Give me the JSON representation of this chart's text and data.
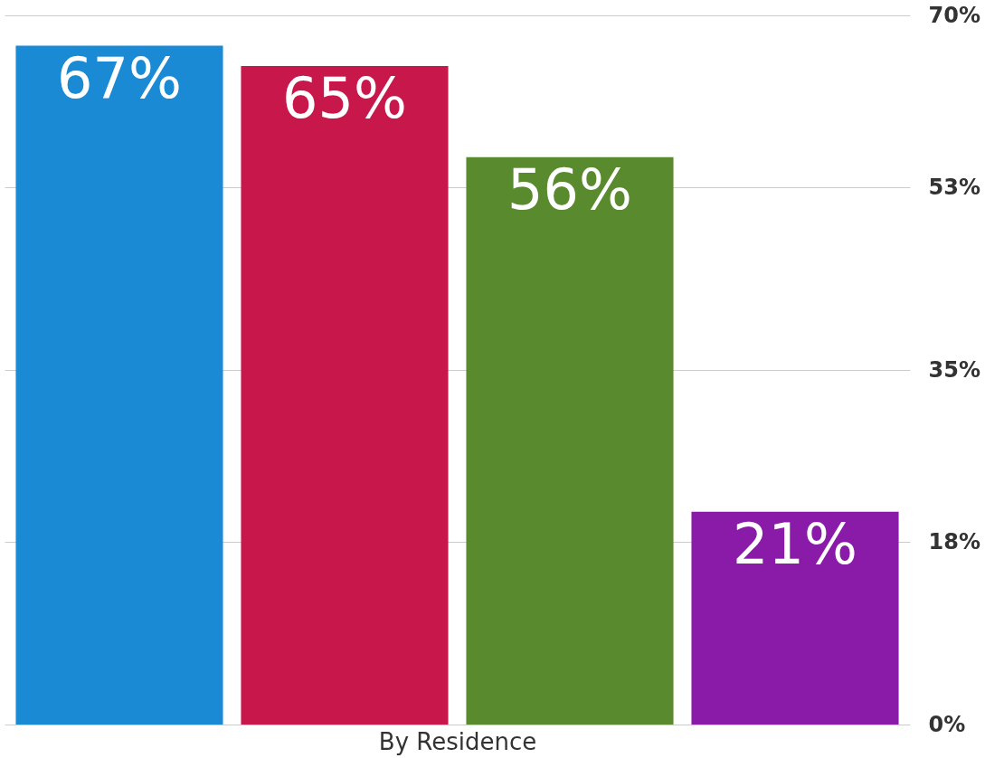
{
  "chart_data": {
    "type": "bar",
    "xlabel": "By Residence",
    "categories": [
      null,
      null,
      null,
      null
    ],
    "values": [
      67,
      65,
      56,
      21
    ],
    "colors": [
      "#1a8ad4",
      "#c8174a",
      "#5a8a2e",
      "#8a1aa8"
    ],
    "value_labels": [
      "67%",
      "65%",
      "56%",
      "21%"
    ],
    "ylim": [
      0,
      70
    ],
    "yticks": [
      {
        "value": 0,
        "label": "0%"
      },
      {
        "value": 18,
        "label": "18%"
      },
      {
        "value": 35,
        "label": "35%"
      },
      {
        "value": 53,
        "label": "53%"
      },
      {
        "value": 70,
        "label": "70%"
      }
    ],
    "grid": "y"
  }
}
